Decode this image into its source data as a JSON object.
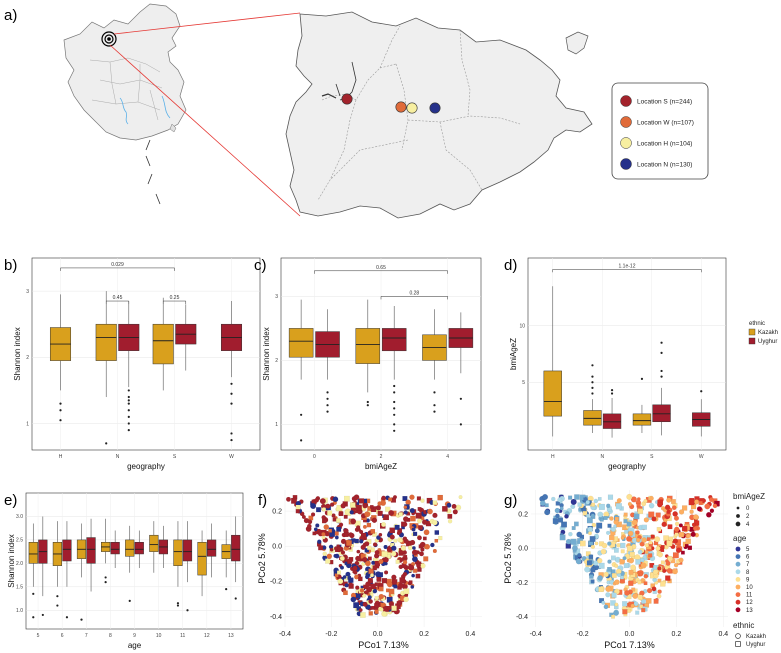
{
  "colors": {
    "kazakh": "#D9A01D",
    "uyghur": "#A11D2E",
    "loc_s": "#A3232C",
    "loc_w": "#E06B3A",
    "loc_h": "#F7EFA1",
    "loc_n": "#25318A",
    "map_fill": "#eeeeee",
    "connector": "#e53935"
  },
  "panel_a": {
    "label": "a)",
    "legend": [
      {
        "name": "Location S (n=244)",
        "color": "#A3232C"
      },
      {
        "name": "Location W (n=107)",
        "color": "#E06B3A"
      },
      {
        "name": "Location H (n=104)",
        "color": "#F7EFA1"
      },
      {
        "name": "Location N (n=130)",
        "color": "#25318A"
      }
    ]
  },
  "chart_data": [
    {
      "id": "b",
      "panel_label": "b)",
      "type": "box",
      "xlabel": "geography",
      "ylabel": "Shannon index",
      "categories": [
        "H",
        "N",
        "S",
        "W"
      ],
      "ylim": [
        0.6,
        3.5
      ],
      "yticks": [
        "1",
        "2",
        "3"
      ],
      "series": [
        {
          "name": "Kazakh",
          "boxes": [
            {
              "cat": "H",
              "q1": 1.95,
              "med": 2.2,
              "q3": 2.45,
              "lo": 1.5,
              "hi": 2.95,
              "out": [
                1.3,
                1.2,
                1.05
              ]
            },
            {
              "cat": "N",
              "q1": 1.95,
              "med": 2.3,
              "q3": 2.5,
              "lo": 1.4,
              "hi": 3.0,
              "out": [
                0.7
              ]
            },
            {
              "cat": "S",
              "q1": 1.9,
              "med": 2.25,
              "q3": 2.5,
              "lo": 1.5,
              "hi": 2.9,
              "out": []
            }
          ]
        },
        {
          "name": "Uyghur",
          "boxes": [
            {
              "cat": "N",
              "q1": 2.1,
              "med": 2.3,
              "q3": 2.5,
              "lo": 1.55,
              "hi": 2.85,
              "out": [
                1.5,
                1.4,
                1.35,
                1.3,
                1.2,
                1.1,
                1.0,
                0.9
              ]
            },
            {
              "cat": "S",
              "q1": 2.2,
              "med": 2.35,
              "q3": 2.5,
              "lo": 1.8,
              "hi": 2.8,
              "out": []
            },
            {
              "cat": "W",
              "q1": 2.1,
              "med": 2.3,
              "q3": 2.5,
              "lo": 1.7,
              "hi": 2.85,
              "out": [
                1.6,
                1.45,
                1.3,
                0.85,
                0.75
              ]
            }
          ]
        }
      ],
      "brackets": [
        {
          "from": "H",
          "to": "S",
          "label": "0.029",
          "y": 3.35
        },
        {
          "from": "N",
          "to": "N",
          "label": "0.45",
          "y": 2.85
        },
        {
          "from": "S",
          "to": "S",
          "label": "0.25",
          "y": 2.85
        }
      ]
    },
    {
      "id": "c",
      "panel_label": "c)",
      "type": "box",
      "xlabel": "bmiAgeZ",
      "ylabel": "Shannon index",
      "categories": [
        "0",
        "2",
        "4"
      ],
      "ylim": [
        0.6,
        3.6
      ],
      "yticks": [
        "1",
        "2",
        "3"
      ],
      "series": [
        {
          "name": "Kazakh",
          "boxes": [
            {
              "cat": "0",
              "q1": 2.05,
              "med": 2.3,
              "q3": 2.5,
              "lo": 1.7,
              "hi": 2.95,
              "out": [
                1.15,
                0.75
              ]
            },
            {
              "cat": "2",
              "q1": 1.95,
              "med": 2.25,
              "q3": 2.5,
              "lo": 1.5,
              "hi": 2.95,
              "out": [
                1.35,
                1.3
              ]
            },
            {
              "cat": "4",
              "q1": 2.0,
              "med": 2.2,
              "q3": 2.4,
              "lo": 1.7,
              "hi": 2.8,
              "out": [
                1.5,
                1.3,
                1.2
              ]
            }
          ]
        },
        {
          "name": "Uyghur",
          "boxes": [
            {
              "cat": "0",
              "q1": 2.05,
              "med": 2.25,
              "q3": 2.45,
              "lo": 1.7,
              "hi": 2.8,
              "out": [
                1.5,
                1.4,
                1.3,
                1.2
              ]
            },
            {
              "cat": "2",
              "q1": 2.15,
              "med": 2.35,
              "q3": 2.5,
              "lo": 1.7,
              "hi": 2.85,
              "out": [
                1.6,
                1.5,
                1.35,
                1.25,
                1.15,
                1.0,
                0.9
              ]
            },
            {
              "cat": "4",
              "q1": 2.2,
              "med": 2.35,
              "q3": 2.5,
              "lo": 1.8,
              "hi": 2.75,
              "out": [
                1.4,
                1.0
              ]
            }
          ]
        }
      ],
      "brackets": [
        {
          "from": "0",
          "to": "4",
          "label": "0.65",
          "y": 3.4
        },
        {
          "from": "2",
          "to": "4",
          "label": "0.28",
          "y": 3.0
        }
      ]
    },
    {
      "id": "d",
      "panel_label": "d)",
      "type": "box",
      "xlabel": "geography",
      "ylabel": "bmiAgeZ",
      "categories": [
        "H",
        "N",
        "S",
        "W"
      ],
      "ylim": [
        -1,
        16
      ],
      "yticks": [
        "5",
        "10"
      ],
      "legend": {
        "title": "ethnic",
        "items": [
          "Kazakh",
          "Uyghur"
        ]
      },
      "series": [
        {
          "name": "Kazakh",
          "boxes": [
            {
              "cat": "H",
              "q1": 2.0,
              "med": 3.3,
              "q3": 6.0,
              "lo": 0.2,
              "hi": 13.5,
              "out": []
            },
            {
              "cat": "N",
              "q1": 1.2,
              "med": 1.8,
              "q3": 2.5,
              "lo": 0.5,
              "hi": 3.5,
              "out": [
                4.0,
                4.5,
                5.0,
                5.5,
                6.5
              ]
            },
            {
              "cat": "S",
              "q1": 1.2,
              "med": 1.6,
              "q3": 2.2,
              "lo": 0.5,
              "hi": 3.0,
              "out": [
                5.3
              ]
            }
          ]
        },
        {
          "name": "Uyghur",
          "boxes": [
            {
              "cat": "N",
              "q1": 0.9,
              "med": 1.5,
              "q3": 2.2,
              "lo": 0.1,
              "hi": 3.6,
              "out": [
                4.0,
                4.3
              ]
            },
            {
              "cat": "S",
              "q1": 1.5,
              "med": 2.2,
              "q3": 3.0,
              "lo": 0.3,
              "hi": 4.5,
              "out": [
                5.5,
                6.0,
                7.6,
                8.5
              ]
            },
            {
              "cat": "W",
              "q1": 1.1,
              "med": 1.7,
              "q3": 2.3,
              "lo": 0.2,
              "hi": 3.5,
              "out": [
                4.2
              ]
            }
          ]
        }
      ],
      "brackets": [
        {
          "from": "H",
          "to": "W",
          "label": "1.1e-12",
          "y": 15.0
        }
      ]
    },
    {
      "id": "e",
      "panel_label": "e)",
      "type": "box",
      "xlabel": "age",
      "ylabel": "Shannon index",
      "categories": [
        "5",
        "6",
        "7",
        "8",
        "9",
        "10",
        "11",
        "12",
        "13"
      ],
      "ylim": [
        0.6,
        3.5
      ],
      "yticks": [
        "1.0",
        "1.5",
        "2.0",
        "2.5",
        "3.0"
      ],
      "series": [
        {
          "name": "Kazakh",
          "boxes": [
            {
              "cat": "5",
              "q1": 2.0,
              "med": 2.2,
              "q3": 2.45,
              "lo": 1.5,
              "hi": 2.85,
              "out": [
                1.35,
                0.85
              ]
            },
            {
              "cat": "6",
              "q1": 1.95,
              "med": 2.2,
              "q3": 2.45,
              "lo": 1.5,
              "hi": 2.9,
              "out": [
                1.3,
                1.1
              ]
            },
            {
              "cat": "7",
              "q1": 2.1,
              "med": 2.3,
              "q3": 2.5,
              "lo": 1.7,
              "hi": 2.85,
              "out": [
                0.8
              ]
            },
            {
              "cat": "8",
              "q1": 2.25,
              "med": 2.35,
              "q3": 2.45,
              "lo": 2.0,
              "hi": 2.95,
              "out": [
                1.6,
                1.7
              ]
            },
            {
              "cat": "9",
              "q1": 2.15,
              "med": 2.3,
              "q3": 2.5,
              "lo": 1.8,
              "hi": 2.8,
              "out": [
                1.2
              ]
            },
            {
              "cat": "10",
              "q1": 2.25,
              "med": 2.4,
              "q3": 2.6,
              "lo": 1.8,
              "hi": 2.9,
              "out": []
            },
            {
              "cat": "11",
              "q1": 1.95,
              "med": 2.25,
              "q3": 2.5,
              "lo": 1.5,
              "hi": 2.9,
              "out": [
                1.15,
                1.1
              ]
            },
            {
              "cat": "12",
              "q1": 1.75,
              "med": 2.15,
              "q3": 2.45,
              "lo": 1.3,
              "hi": 2.7,
              "out": []
            },
            {
              "cat": "13",
              "q1": 2.1,
              "med": 2.25,
              "q3": 2.4,
              "lo": 1.7,
              "hi": 2.7,
              "out": [
                1.45
              ]
            }
          ]
        },
        {
          "name": "Uyghur",
          "boxes": [
            {
              "cat": "5",
              "q1": 2.0,
              "med": 2.25,
              "q3": 2.5,
              "lo": 1.3,
              "hi": 3.0,
              "out": [
                0.9
              ]
            },
            {
              "cat": "6",
              "q1": 2.05,
              "med": 2.3,
              "q3": 2.5,
              "lo": 1.5,
              "hi": 2.9,
              "out": [
                0.85
              ]
            },
            {
              "cat": "7",
              "q1": 2.0,
              "med": 2.3,
              "q3": 2.55,
              "lo": 1.4,
              "hi": 2.95,
              "out": []
            },
            {
              "cat": "8",
              "q1": 2.2,
              "med": 2.3,
              "q3": 2.45,
              "lo": 1.9,
              "hi": 2.7,
              "out": []
            },
            {
              "cat": "9",
              "q1": 2.2,
              "med": 2.3,
              "q3": 2.45,
              "lo": 1.9,
              "hi": 2.7,
              "out": []
            },
            {
              "cat": "10",
              "q1": 2.2,
              "med": 2.35,
              "q3": 2.5,
              "lo": 1.9,
              "hi": 2.8,
              "out": []
            },
            {
              "cat": "11",
              "q1": 2.05,
              "med": 2.25,
              "q3": 2.5,
              "lo": 1.6,
              "hi": 2.9,
              "out": [
                1.0
              ]
            },
            {
              "cat": "12",
              "q1": 2.15,
              "med": 2.3,
              "q3": 2.5,
              "lo": 1.7,
              "hi": 2.85,
              "out": []
            },
            {
              "cat": "13",
              "q1": 2.05,
              "med": 2.3,
              "q3": 2.6,
              "lo": 1.6,
              "hi": 3.0,
              "out": [
                1.25
              ]
            }
          ]
        }
      ],
      "brackets": []
    },
    {
      "id": "f",
      "panel_label": "f)",
      "type": "scatter",
      "xlabel": "PCo1 7.13%",
      "ylabel": "PCo2 5.78%",
      "xlim": [
        -0.4,
        0.45
      ],
      "ylim": [
        -0.46,
        0.32
      ],
      "xticks": [
        -0.4,
        -0.2,
        0.0,
        0.2,
        0.4
      ],
      "yticks": [
        -0.4,
        -0.2,
        0.0,
        0.2
      ],
      "color_by": "geography",
      "n_points": 585,
      "seed": 7
    },
    {
      "id": "g",
      "panel_label": "g)",
      "type": "scatter",
      "xlabel": "PCo1 7.13%",
      "ylabel": "PCo2 5.78%",
      "xlim": [
        -0.42,
        0.42
      ],
      "ylim": [
        -0.46,
        0.34
      ],
      "xticks": [
        -0.4,
        -0.2,
        0.0,
        0.2,
        0.4
      ],
      "yticks": [
        -0.4,
        -0.2,
        0.0,
        0.2
      ],
      "color_by": "age",
      "n_points": 585,
      "seed": 11,
      "legend": {
        "bmi_title": "bmiAgeZ",
        "bmi_items": [
          {
            "label": "0",
            "size": 2.5
          },
          {
            "label": "2",
            "size": 3.4
          },
          {
            "label": "4",
            "size": 4.3
          }
        ],
        "age_title": "age",
        "age_items": [
          {
            "label": "5",
            "color": "#313695"
          },
          {
            "label": "6",
            "color": "#4575b4"
          },
          {
            "label": "7",
            "color": "#74add1"
          },
          {
            "label": "8",
            "color": "#abd9e9"
          },
          {
            "label": "9",
            "color": "#fee090"
          },
          {
            "label": "10",
            "color": "#fdae61"
          },
          {
            "label": "11",
            "color": "#f46d43"
          },
          {
            "label": "12",
            "color": "#d73027"
          },
          {
            "label": "13",
            "color": "#a50026"
          }
        ],
        "eth_title": "ethnic",
        "eth_items": [
          {
            "label": "Kazakh",
            "shape": "circle"
          },
          {
            "label": "Uyghur",
            "shape": "square"
          }
        ]
      }
    }
  ]
}
